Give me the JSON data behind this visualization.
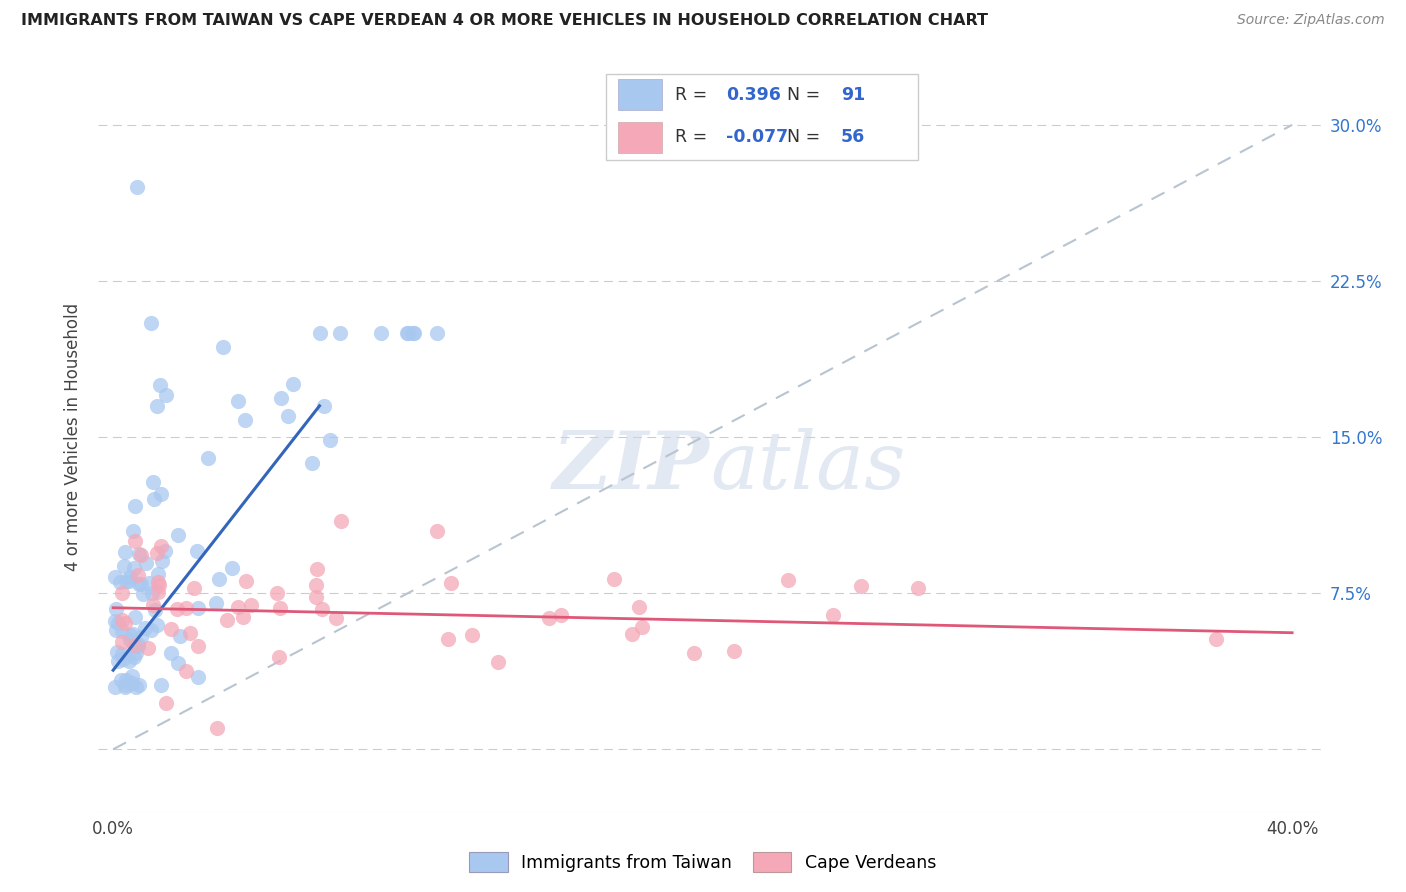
{
  "title": "IMMIGRANTS FROM TAIWAN VS CAPE VERDEAN 4 OR MORE VEHICLES IN HOUSEHOLD CORRELATION CHART",
  "source": "Source: ZipAtlas.com",
  "ylabel": "4 or more Vehicles in Household",
  "ytick_positions": [
    0.0,
    7.5,
    15.0,
    22.5,
    30.0
  ],
  "ytick_labels_right": [
    "",
    "7.5%",
    "15.0%",
    "22.5%",
    "30.0%"
  ],
  "xlim": [
    -0.5,
    41.0
  ],
  "ylim": [
    -3.0,
    33.0
  ],
  "xtick_positions": [
    0,
    10,
    20,
    30,
    40
  ],
  "taiwan_R": 0.396,
  "taiwan_N": 91,
  "capeverde_R": -0.077,
  "capeverde_N": 56,
  "taiwan_color": "#a8c8f0",
  "capeverde_color": "#f4a8b8",
  "taiwan_line_color": "#3366bb",
  "capeverde_line_color": "#e05878",
  "diagonal_color": "#b8c4d0",
  "legend_label_taiwan": "Immigrants from Taiwan",
  "legend_label_capeverde": "Cape Verdeans",
  "tw_line_x0": 0.0,
  "tw_line_y0": 3.8,
  "tw_line_x1": 7.0,
  "tw_line_y1": 16.5,
  "cv_line_x0": 0.0,
  "cv_line_y0": 6.8,
  "cv_line_x1": 40.0,
  "cv_line_y1": 5.6,
  "diag_x0": 0.0,
  "diag_y0": 0.0,
  "diag_x1": 40.0,
  "diag_y1": 30.0
}
